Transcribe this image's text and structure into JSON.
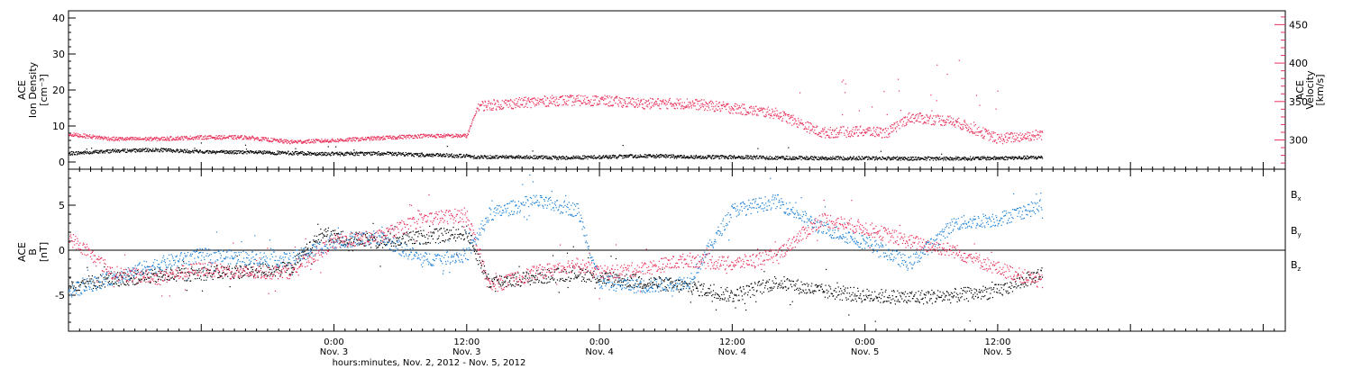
{
  "colors": {
    "black": "#000000",
    "pink": "#e8305a",
    "blue": "#1a7fd6"
  },
  "footer": {
    "xlabel": "hours:minutes, Nov.  2, 2012 - Nov.  5, 2012"
  },
  "x_axis": {
    "range_hours": [
      -24,
      86
    ],
    "ticks": [
      {
        "h": 0,
        "time": "0:00",
        "day": "Nov. 3"
      },
      {
        "h": 12,
        "time": "12:00",
        "day": "Nov. 3"
      },
      {
        "h": 24,
        "time": "0:00",
        "day": "Nov. 4"
      },
      {
        "h": 36,
        "time": "12:00",
        "day": "Nov. 4"
      },
      {
        "h": 48,
        "time": "0:00",
        "day": "Nov. 5"
      },
      {
        "h": 60,
        "time": "12:00",
        "day": "Nov. 5"
      }
    ]
  },
  "chart_data": [
    {
      "type": "scatter",
      "panel": "plasma",
      "ylabel_left": [
        "ACE",
        "Ion Density",
        "[cm⁻³]"
      ],
      "ylabel_right": [
        "ACE",
        "Velocity",
        "[km/s]"
      ],
      "ylim_left": [
        -2,
        42
      ],
      "yticks_left": [
        "0",
        "10",
        "20",
        "30",
        "40"
      ],
      "ylim_right": [
        262,
        468
      ],
      "yticks_right": [
        "300",
        "350",
        "400",
        "450"
      ],
      "series": [
        {
          "axis": "left",
          "color": "#000000",
          "x": [
            -24,
            -20,
            -16,
            -12,
            -8,
            -4,
            0,
            4,
            8,
            12,
            13,
            16,
            20,
            24,
            28,
            32,
            36,
            40,
            44,
            48,
            52,
            56,
            60,
            64
          ],
          "y": [
            2.5,
            3.2,
            3.5,
            3.0,
            2.8,
            2.6,
            2.4,
            2.5,
            2.1,
            1.8,
            1.5,
            1.6,
            1.3,
            1.5,
            1.8,
            1.6,
            1.5,
            1.3,
            1.2,
            1.2,
            1.1,
            1.1,
            1.2,
            1.4
          ]
        },
        {
          "axis": "right",
          "color": "#e8305a",
          "x": [
            -24,
            -20,
            -16,
            -12,
            -8,
            -4,
            0,
            4,
            8,
            12,
            13,
            16,
            20,
            24,
            28,
            32,
            36,
            40,
            44,
            48,
            50,
            52,
            56,
            60,
            64
          ],
          "y": [
            308,
            302,
            302,
            304,
            304,
            298,
            300,
            303,
            306,
            306,
            345,
            348,
            352,
            352,
            348,
            348,
            342,
            335,
            310,
            312,
            310,
            330,
            325,
            302,
            308
          ]
        }
      ]
    },
    {
      "type": "scatter",
      "panel": "field",
      "ylabel_left": [
        "ACE",
        "B",
        "[nT]"
      ],
      "ylim": [
        -9,
        9
      ],
      "yticks": [
        "-5",
        "0",
        "5"
      ],
      "legend": [
        {
          "label": "B",
          "sub": "x",
          "color": "#000000"
        },
        {
          "label": "B",
          "sub": "y",
          "color": "#1a7fd6"
        },
        {
          "label": "B",
          "sub": "z",
          "color": "#e8305a"
        }
      ],
      "series": [
        {
          "name": "Bx",
          "color": "#000000",
          "x": [
            -24,
            -20,
            -16,
            -12,
            -8,
            -4,
            -1,
            0,
            4,
            8,
            12,
            14,
            18,
            22,
            24,
            28,
            32,
            36,
            40,
            44,
            48,
            52,
            56,
            60,
            64
          ],
          "y": [
            -3.8,
            -3.2,
            -2.8,
            -2.5,
            -2.3,
            -2.0,
            2.0,
            1.5,
            1.0,
            1.5,
            2.0,
            -3.5,
            -3.0,
            -2.5,
            -3.0,
            -3.5,
            -4.0,
            -5.0,
            -3.5,
            -4.5,
            -5.0,
            -5.2,
            -5.0,
            -4.5,
            -2.5
          ]
        },
        {
          "name": "By",
          "color": "#1a7fd6",
          "x": [
            -24,
            -20,
            -16,
            -12,
            -8,
            -4,
            0,
            4,
            8,
            12,
            14,
            18,
            22,
            24,
            28,
            32,
            36,
            40,
            44,
            48,
            52,
            56,
            60,
            64
          ],
          "y": [
            -4.5,
            -3.0,
            -1.5,
            -0.5,
            -0.8,
            -1.0,
            1.0,
            1.5,
            -1.0,
            -0.5,
            4.0,
            5.5,
            4.5,
            -3.5,
            -4.0,
            -3.5,
            4.5,
            5.5,
            2.5,
            1.0,
            -1.5,
            3.0,
            3.5,
            5.0
          ]
        },
        {
          "name": "Bz",
          "color": "#e8305a",
          "x": [
            -24,
            -20,
            -16,
            -12,
            -8,
            -4,
            0,
            4,
            8,
            12,
            14,
            18,
            22,
            24,
            28,
            32,
            36,
            40,
            44,
            48,
            52,
            56,
            60,
            64
          ],
          "y": [
            1.5,
            -2.5,
            -3.0,
            -2.0,
            -2.5,
            -2.3,
            1.0,
            1.5,
            3.5,
            4.0,
            -4.0,
            -2.5,
            -1.5,
            -2.5,
            -2.0,
            -1.0,
            -1.5,
            -0.5,
            3.5,
            2.5,
            1.0,
            0.0,
            -2.0,
            -3.5
          ]
        }
      ]
    }
  ]
}
